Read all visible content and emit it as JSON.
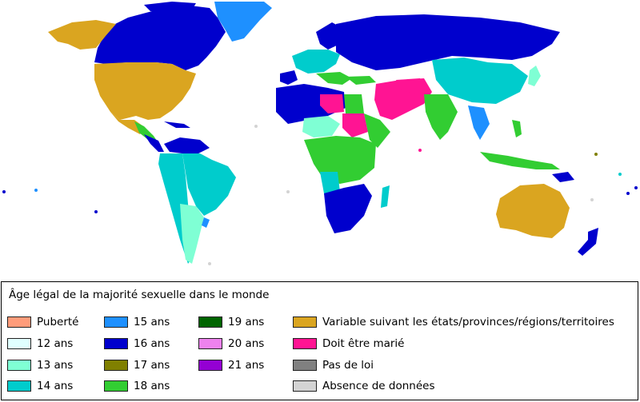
{
  "map": {
    "ocean_color": "#ffffff",
    "border_color": "#ffffff"
  },
  "legend": {
    "title": "Âge légal de la majorité sexuelle dans le monde",
    "columns": [
      [
        {
          "label": "Puberté",
          "color": "#ff9c7a"
        },
        {
          "label": "12 ans",
          "color": "#e0ffff"
        },
        {
          "label": "13 ans",
          "color": "#7fffd4"
        },
        {
          "label": "14 ans",
          "color": "#00cccc"
        }
      ],
      [
        {
          "label": "15 ans",
          "color": "#1e90ff"
        },
        {
          "label": "16 ans",
          "color": "#0000cd"
        },
        {
          "label": "17 ans",
          "color": "#808000"
        },
        {
          "label": "18 ans",
          "color": "#32cd32"
        }
      ],
      [
        {
          "label": "19 ans",
          "color": "#006400"
        },
        {
          "label": "20 ans",
          "color": "#ee82ee"
        },
        {
          "label": "21 ans",
          "color": "#9400d3"
        }
      ],
      [
        {
          "label": "Variable suivant les états/provinces/régions/territoires",
          "color": "#daa520"
        },
        {
          "label": "Doit être marié",
          "color": "#ff1493"
        },
        {
          "label": "Pas de loi",
          "color": "#808080"
        },
        {
          "label": "Absence de données",
          "color": "#d3d3d3"
        }
      ]
    ]
  }
}
